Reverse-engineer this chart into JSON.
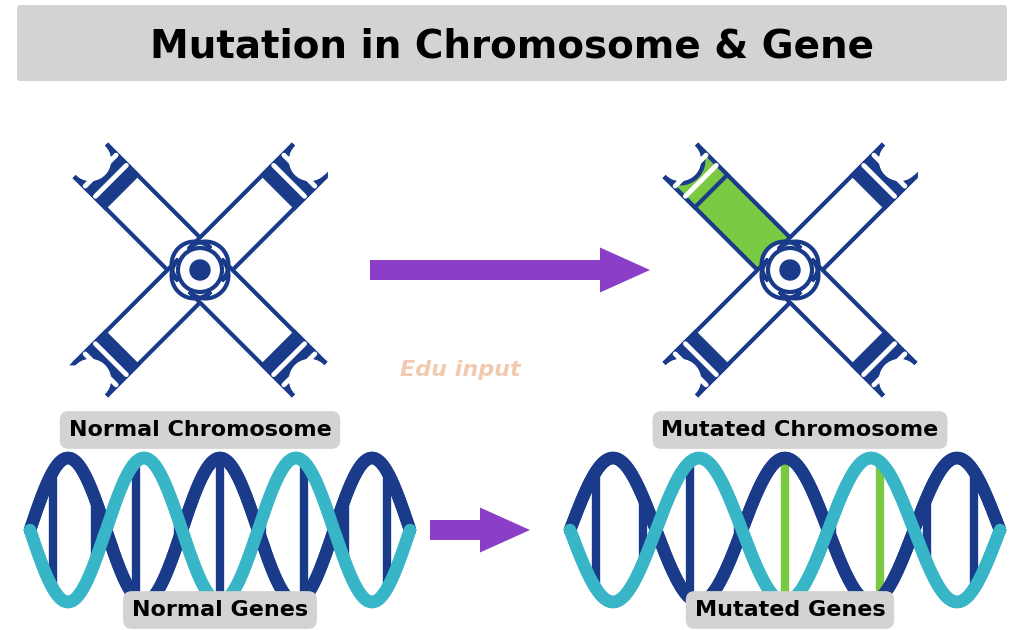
{
  "title": "Mutation in Chromosome & Gene",
  "title_fontsize": 28,
  "title_bg": "#d3d3d3",
  "bg_color": "#ffffff",
  "arrow_color": "#8B3FC8",
  "label_bg": "#d3d3d3",
  "labels": {
    "normal_chrom": "Normal Chromosome",
    "mutated_chrom": "Mutated Chromosome",
    "normal_gene": "Normal Genes",
    "mutated_gene": "Mutated Genes"
  },
  "chrom_main": "#1a3a8a",
  "chrom_fill": "#ffffff",
  "chrom_cap": "#1a3a8a",
  "mutation_color": "#7ac943",
  "dna_teal": "#38b6c8",
  "dna_navy": "#1a3a8a",
  "dna_mut": "#7ac943",
  "watermark_text": "Edu input",
  "watermark_color": "#e8a87c"
}
